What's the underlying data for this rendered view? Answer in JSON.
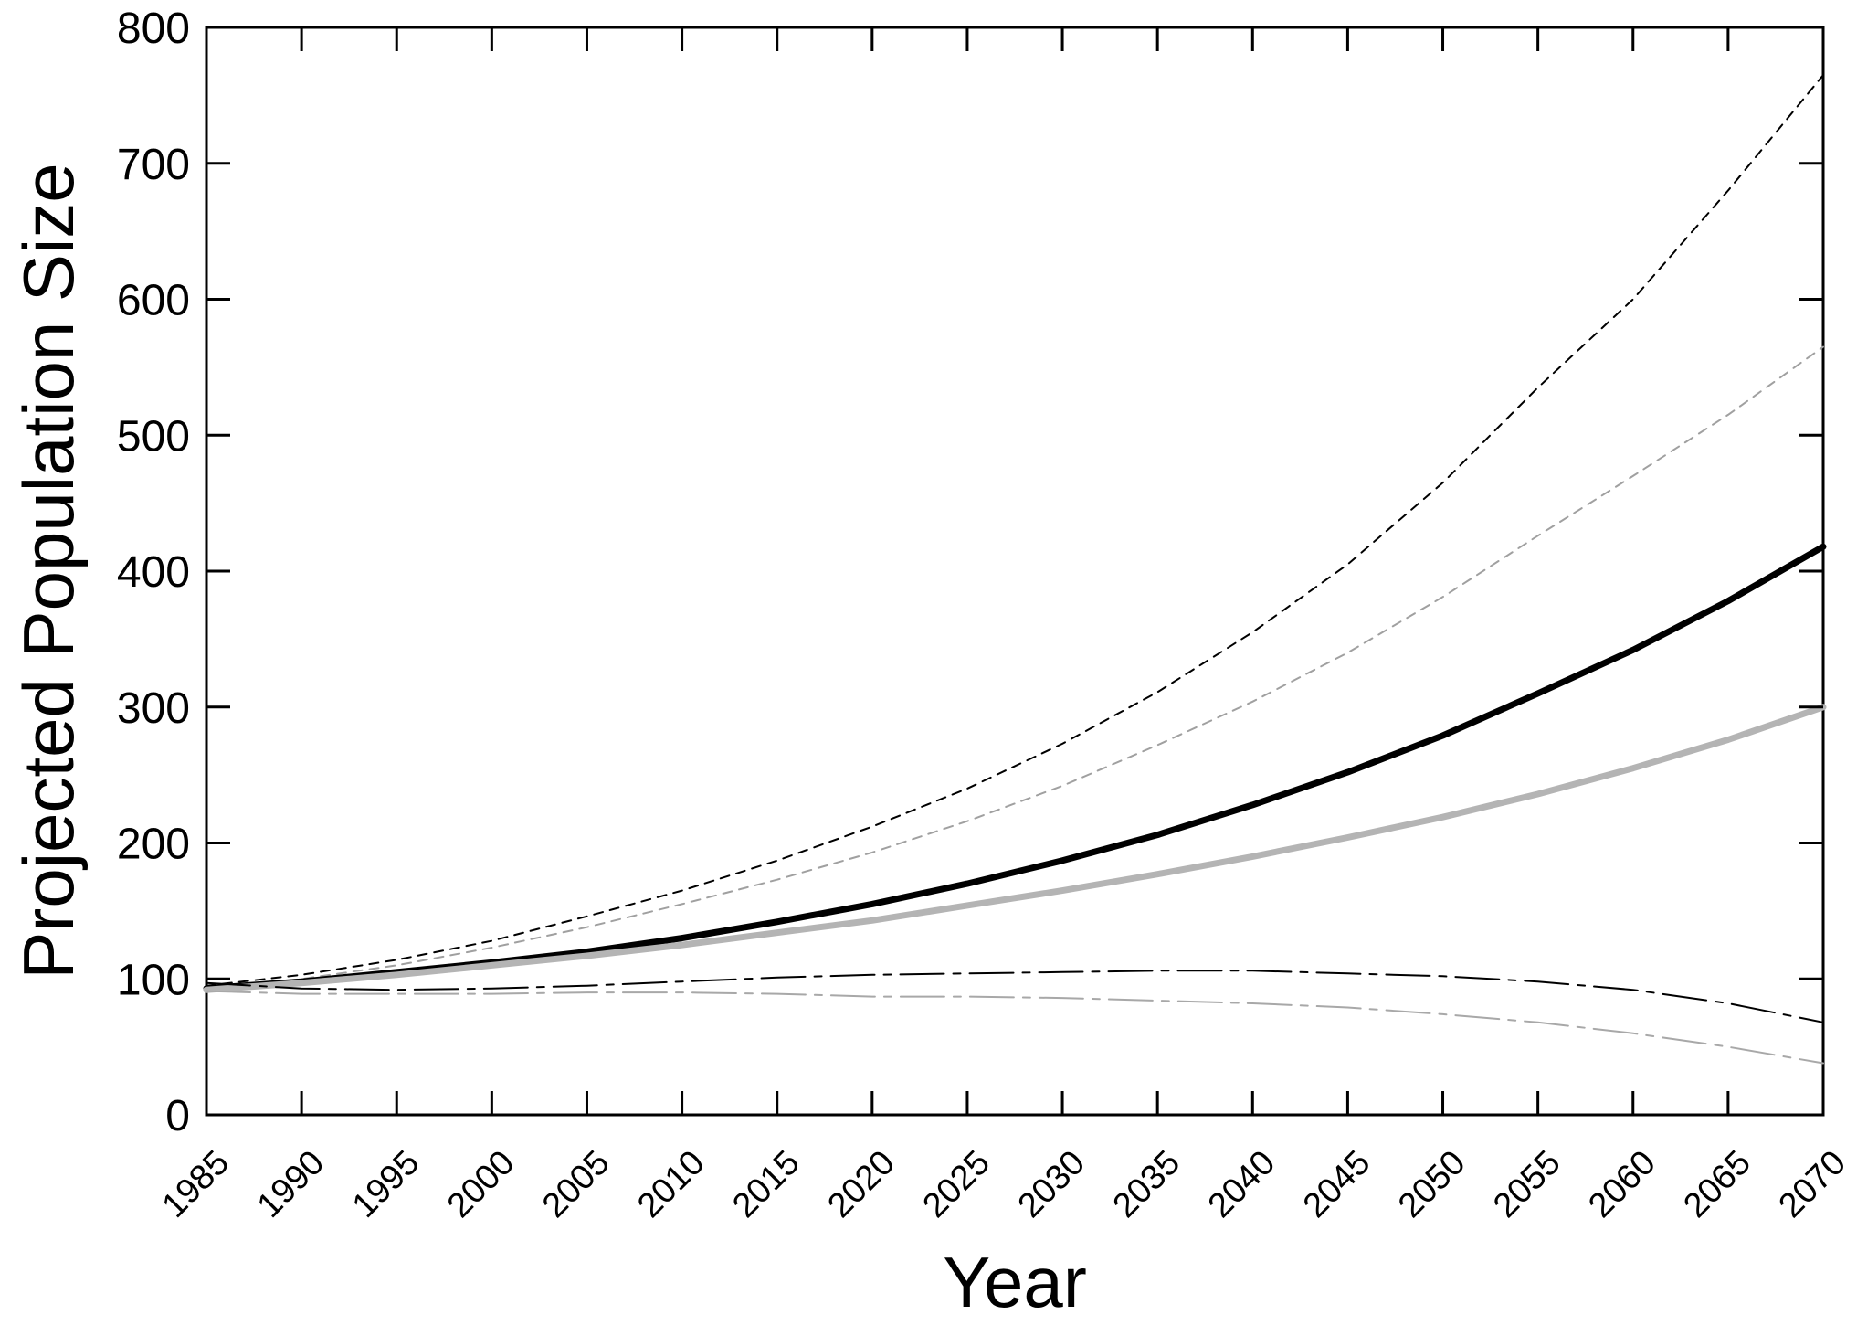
{
  "chart_data": {
    "type": "line",
    "title": "",
    "xlabel": "Year",
    "ylabel": "Projected Population Size",
    "xlim": [
      1985,
      2070
    ],
    "ylim": [
      0,
      800
    ],
    "x_ticks": [
      1985,
      1990,
      1995,
      2000,
      2005,
      2010,
      2015,
      2020,
      2025,
      2030,
      2035,
      2040,
      2045,
      2050,
      2055,
      2060,
      2065,
      2070
    ],
    "x_tick_labels": [
      "1985",
      "1990",
      "1995",
      "2000",
      "2005",
      "2010",
      "2015",
      "2020",
      "2025",
      "2030",
      "2035",
      "2040",
      "2045",
      "2050",
      "2055",
      "2060",
      "2065",
      "2070"
    ],
    "y_ticks": [
      0,
      100,
      200,
      300,
      400,
      500,
      600,
      700,
      800
    ],
    "y_tick_labels": [
      "0",
      "100",
      "200",
      "300",
      "400",
      "500",
      "600",
      "700",
      "800"
    ],
    "grid": false,
    "legend": "none",
    "x": [
      1985,
      1990,
      1995,
      2000,
      2005,
      2010,
      2015,
      2020,
      2025,
      2030,
      2035,
      2040,
      2045,
      2050,
      2055,
      2060,
      2065,
      2070
    ],
    "series": [
      {
        "style": {
          "color": "#000000",
          "width": 2,
          "dash": "10,8"
        },
        "values": [
          95,
          103,
          114,
          128,
          146,
          165,
          187,
          212,
          240,
          273,
          311,
          355,
          405,
          465,
          535,
          600,
          680,
          765
        ]
      },
      {
        "style": {
          "color": "#a0a0a0",
          "width": 2,
          "dash": "10,8"
        },
        "values": [
          92,
          100,
          110,
          123,
          138,
          155,
          173,
          193,
          216,
          242,
          272,
          304,
          340,
          381,
          426,
          470,
          515,
          565
        ]
      },
      {
        "style": {
          "color": "#000000",
          "width": 7,
          "dash": ""
        },
        "values": [
          93,
          98,
          105,
          112,
          120,
          130,
          142,
          155,
          170,
          187,
          206,
          228,
          252,
          279,
          310,
          342,
          378,
          418
        ]
      },
      {
        "style": {
          "color": "#b4b4b4",
          "width": 7,
          "dash": ""
        },
        "values": [
          92,
          97,
          103,
          110,
          117,
          125,
          134,
          143,
          154,
          165,
          177,
          190,
          204,
          219,
          236,
          255,
          276,
          300
        ]
      },
      {
        "style": {
          "color": "#000000",
          "width": 2,
          "dash": "48,10,8,10"
        },
        "values": [
          97,
          93,
          92,
          93,
          95,
          98,
          101,
          103,
          104,
          105,
          106,
          106,
          104,
          102,
          98,
          92,
          82,
          68
        ]
      },
      {
        "style": {
          "color": "#a8a8a8",
          "width": 2,
          "dash": "48,10,8,10"
        },
        "values": [
          91,
          89,
          89,
          89,
          90,
          90,
          89,
          87,
          87,
          86,
          84,
          82,
          79,
          74,
          68,
          60,
          50,
          38
        ]
      }
    ]
  }
}
